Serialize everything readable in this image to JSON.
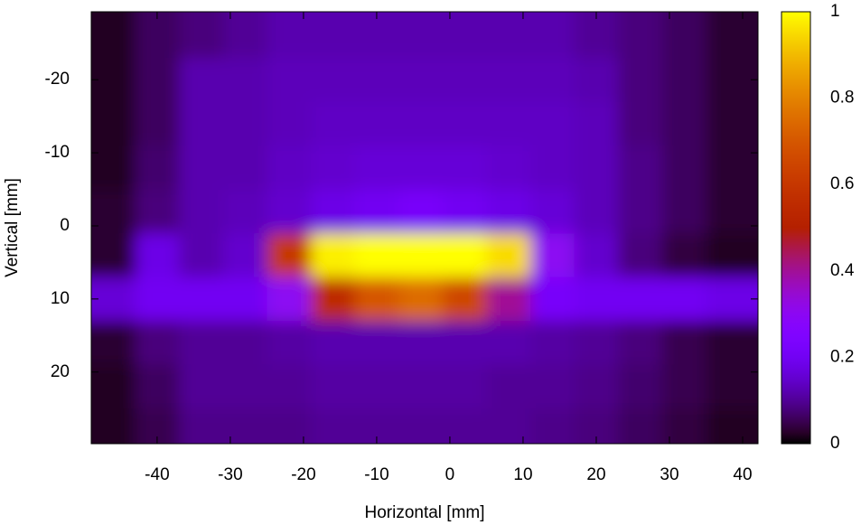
{
  "chart_data": {
    "type": "heatmap",
    "xlabel": "Horizontal [mm]",
    "ylabel": "Vertical [mm]",
    "x": [
      -46,
      -40,
      -34,
      -28,
      -22,
      -16,
      -10,
      -4,
      2,
      8,
      14,
      20,
      26,
      32,
      38
    ],
    "y": [
      -26,
      -20,
      -14,
      -8,
      -2,
      4,
      10,
      16,
      22,
      28
    ],
    "z": [
      [
        0.02,
        0.06,
        0.08,
        0.1,
        0.12,
        0.12,
        0.12,
        0.12,
        0.12,
        0.12,
        0.12,
        0.1,
        0.08,
        0.06,
        0.03
      ],
      [
        0.02,
        0.06,
        0.12,
        0.12,
        0.13,
        0.13,
        0.13,
        0.13,
        0.13,
        0.13,
        0.13,
        0.12,
        0.08,
        0.06,
        0.03
      ],
      [
        0.02,
        0.06,
        0.12,
        0.12,
        0.13,
        0.14,
        0.14,
        0.14,
        0.14,
        0.14,
        0.14,
        0.13,
        0.08,
        0.06,
        0.03
      ],
      [
        0.02,
        0.07,
        0.12,
        0.12,
        0.14,
        0.15,
        0.16,
        0.16,
        0.16,
        0.15,
        0.14,
        0.13,
        0.09,
        0.06,
        0.03
      ],
      [
        0.03,
        0.08,
        0.12,
        0.13,
        0.15,
        0.18,
        0.2,
        0.22,
        0.2,
        0.18,
        0.16,
        0.13,
        0.09,
        0.06,
        0.03
      ],
      [
        0.03,
        0.18,
        0.12,
        0.15,
        0.6,
        0.98,
        1,
        1,
        1,
        0.95,
        0.3,
        0.15,
        0.08,
        0.04,
        0.02
      ],
      [
        0.16,
        0.2,
        0.2,
        0.2,
        0.3,
        0.55,
        0.7,
        0.75,
        0.65,
        0.4,
        0.22,
        0.2,
        0.2,
        0.2,
        0.18
      ],
      [
        0.03,
        0.08,
        0.1,
        0.1,
        0.11,
        0.12,
        0.12,
        0.12,
        0.12,
        0.12,
        0.11,
        0.1,
        0.08,
        0.05,
        0.03
      ],
      [
        0.02,
        0.06,
        0.1,
        0.1,
        0.1,
        0.11,
        0.11,
        0.11,
        0.11,
        0.1,
        0.1,
        0.09,
        0.07,
        0.05,
        0.03
      ],
      [
        0.02,
        0.05,
        0.09,
        0.09,
        0.09,
        0.1,
        0.1,
        0.1,
        0.1,
        0.1,
        0.09,
        0.08,
        0.06,
        0.04,
        0.02
      ]
    ],
    "xlim": [
      -49,
      42.1
    ],
    "ylim": [
      29.8,
      -29.3
    ],
    "xticks": [
      -40,
      -30,
      -20,
      -10,
      0,
      10,
      20,
      30,
      40
    ],
    "yticks": [
      -20,
      -10,
      0,
      10,
      20
    ],
    "cblim": [
      0,
      1
    ],
    "cbticks": [
      0,
      0.2,
      0.4,
      0.6,
      0.8,
      1
    ],
    "palette": "rgbformulae-7-5-15"
  }
}
